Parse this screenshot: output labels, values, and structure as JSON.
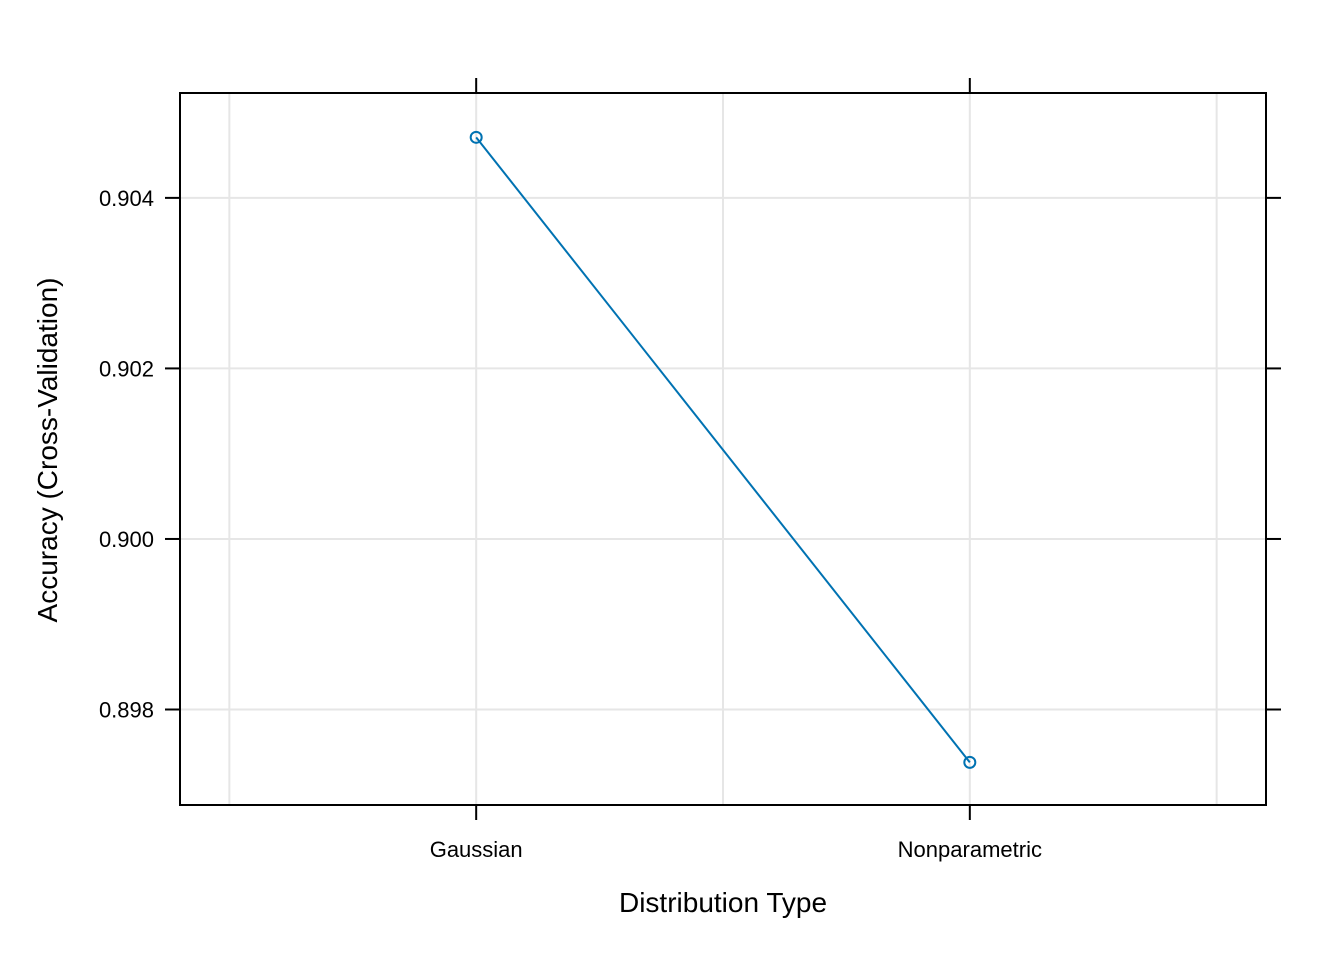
{
  "chart_data": {
    "type": "line",
    "categories": [
      "Gaussian",
      "Nonparametric"
    ],
    "series": [
      {
        "values": [
          0.90471,
          0.89738
        ]
      }
    ],
    "xlabel": "Distribution Type",
    "ylabel": "Accuracy (Cross-Validation)",
    "ylim": [
      0.89688,
      0.90523
    ],
    "yticks": [
      0.898,
      0.9,
      0.902,
      0.904
    ],
    "ytick_labels": [
      "0.898",
      "0.900",
      "0.902",
      "0.904"
    ],
    "grid": true,
    "colors": {
      "series": "#0072B2",
      "grid": "#E6E6E6",
      "axis": "#000000"
    }
  }
}
